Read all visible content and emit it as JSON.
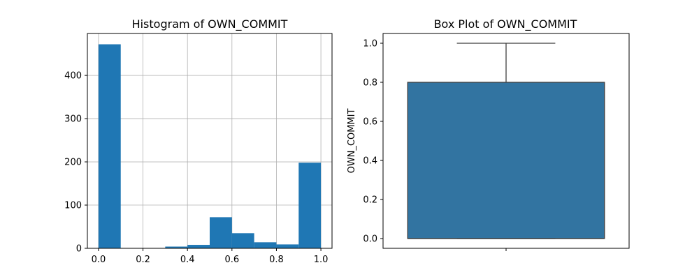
{
  "chart_data": [
    {
      "type": "bar",
      "title": "Histogram of OWN_COMMIT",
      "xlabel": "",
      "ylabel": "",
      "grid": true,
      "color": "#1f77b4",
      "xlim": [
        -0.05,
        1.05
      ],
      "ylim": [
        0,
        497
      ],
      "bins": [
        {
          "x0": 0.0,
          "x1": 0.1,
          "count": 472
        },
        {
          "x0": 0.1,
          "x1": 0.2,
          "count": 0
        },
        {
          "x0": 0.2,
          "x1": 0.3,
          "count": 0
        },
        {
          "x0": 0.3,
          "x1": 0.4,
          "count": 4
        },
        {
          "x0": 0.4,
          "x1": 0.5,
          "count": 8
        },
        {
          "x0": 0.5,
          "x1": 0.6,
          "count": 72
        },
        {
          "x0": 0.6,
          "x1": 0.7,
          "count": 35
        },
        {
          "x0": 0.7,
          "x1": 0.8,
          "count": 14
        },
        {
          "x0": 0.8,
          "x1": 0.9,
          "count": 9
        },
        {
          "x0": 0.9,
          "x1": 1.0,
          "count": 198
        }
      ],
      "xticks": [
        0.0,
        0.2,
        0.4,
        0.6,
        0.8,
        1.0
      ],
      "xtick_labels": [
        "0.0",
        "0.2",
        "0.4",
        "0.6",
        "0.8",
        "1.0"
      ],
      "yticks": [
        0,
        100,
        200,
        300,
        400
      ],
      "ytick_labels": [
        "0",
        "100",
        "200",
        "300",
        "400"
      ]
    },
    {
      "type": "box",
      "title": "Box Plot of OWN_COMMIT",
      "xlabel": "",
      "ylabel": "OWN_COMMIT",
      "grid": false,
      "color": "#3274a1",
      "edge_color": "#3f3f3f",
      "ylim": [
        -0.05,
        1.05
      ],
      "stats": {
        "min": 0.0,
        "q1": 0.0,
        "median": 0.0,
        "q3": 0.8,
        "max": 1.0
      },
      "yticks": [
        0.0,
        0.2,
        0.4,
        0.6,
        0.8,
        1.0
      ],
      "ytick_labels": [
        "0.0",
        "0.2",
        "0.4",
        "0.6",
        "0.8",
        "1.0"
      ]
    }
  ]
}
